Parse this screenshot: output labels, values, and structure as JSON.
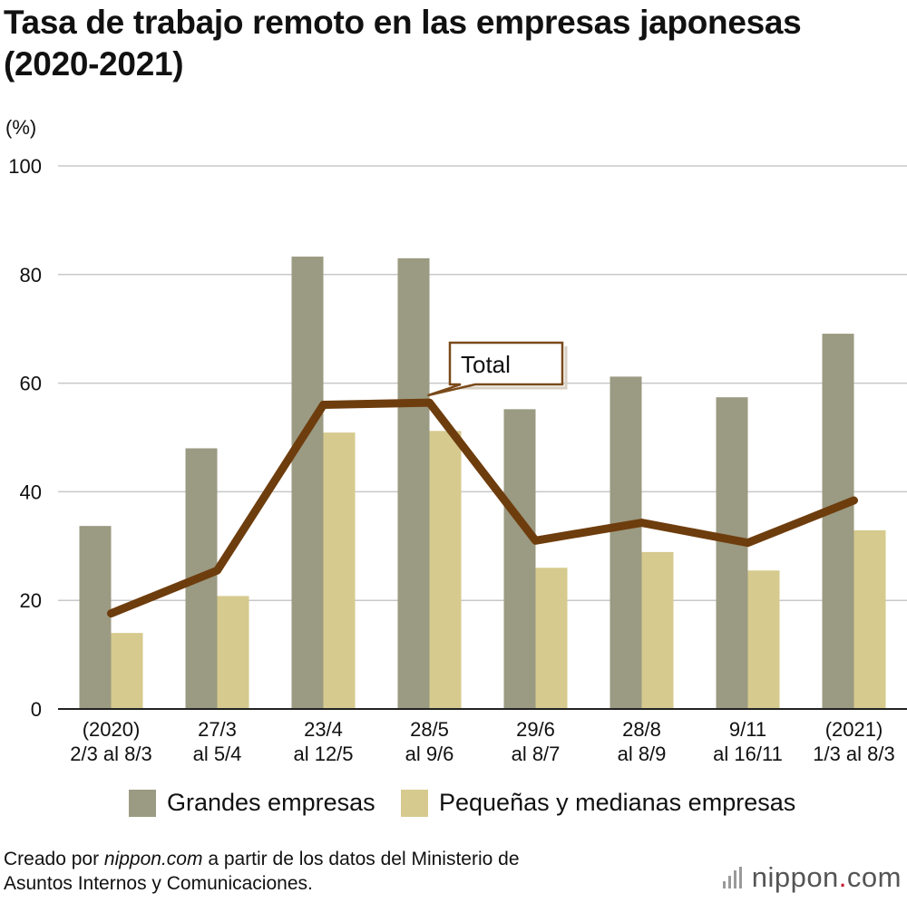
{
  "chart_data": {
    "type": "bar",
    "title_line1": "Tasa de trabajo remoto en las empresas japonesas",
    "title_line2": "(2020-2021)",
    "ylabel": "(%)",
    "ylim": [
      0,
      100
    ],
    "yticks": [
      0,
      20,
      40,
      60,
      80,
      100
    ],
    "grid": true,
    "categories": [
      [
        "(2020)",
        "2/3 al 8/3"
      ],
      [
        "27/3",
        "al 5/4"
      ],
      [
        "23/4",
        "al 12/5"
      ],
      [
        "28/5",
        "al 9/6"
      ],
      [
        "29/6",
        "al 8/7"
      ],
      [
        "28/8",
        "al 8/9"
      ],
      [
        "9/11",
        "al 16/11"
      ],
      [
        "(2021)",
        "1/3 al 8/3"
      ]
    ],
    "series": [
      {
        "name": "Grandes empresas",
        "type": "bar",
        "color": "#9b9a82",
        "values": [
          33.7,
          48.0,
          83.3,
          83.0,
          55.2,
          61.2,
          57.4,
          69.1
        ]
      },
      {
        "name": "Pequeñas y medianas empresas",
        "type": "bar",
        "color": "#d6ca8e",
        "values": [
          14.0,
          20.8,
          50.9,
          51.2,
          26.0,
          28.9,
          25.5,
          32.9
        ]
      },
      {
        "name": "Total",
        "type": "line",
        "color": "#6e3d0d",
        "values": [
          17.6,
          25.5,
          56.0,
          56.4,
          31.0,
          34.3,
          30.6,
          38.4
        ]
      }
    ],
    "annotation": "Total",
    "legend_position": "bottom"
  },
  "footer": {
    "prefix": "Creado por ",
    "site": "nippon.com",
    "suffix": " a partir de los datos del Ministerio de",
    "line2": "Asuntos Internos y Comunicaciones."
  },
  "brand": {
    "name": "nippon",
    "dot": ".",
    "tld": "com"
  }
}
